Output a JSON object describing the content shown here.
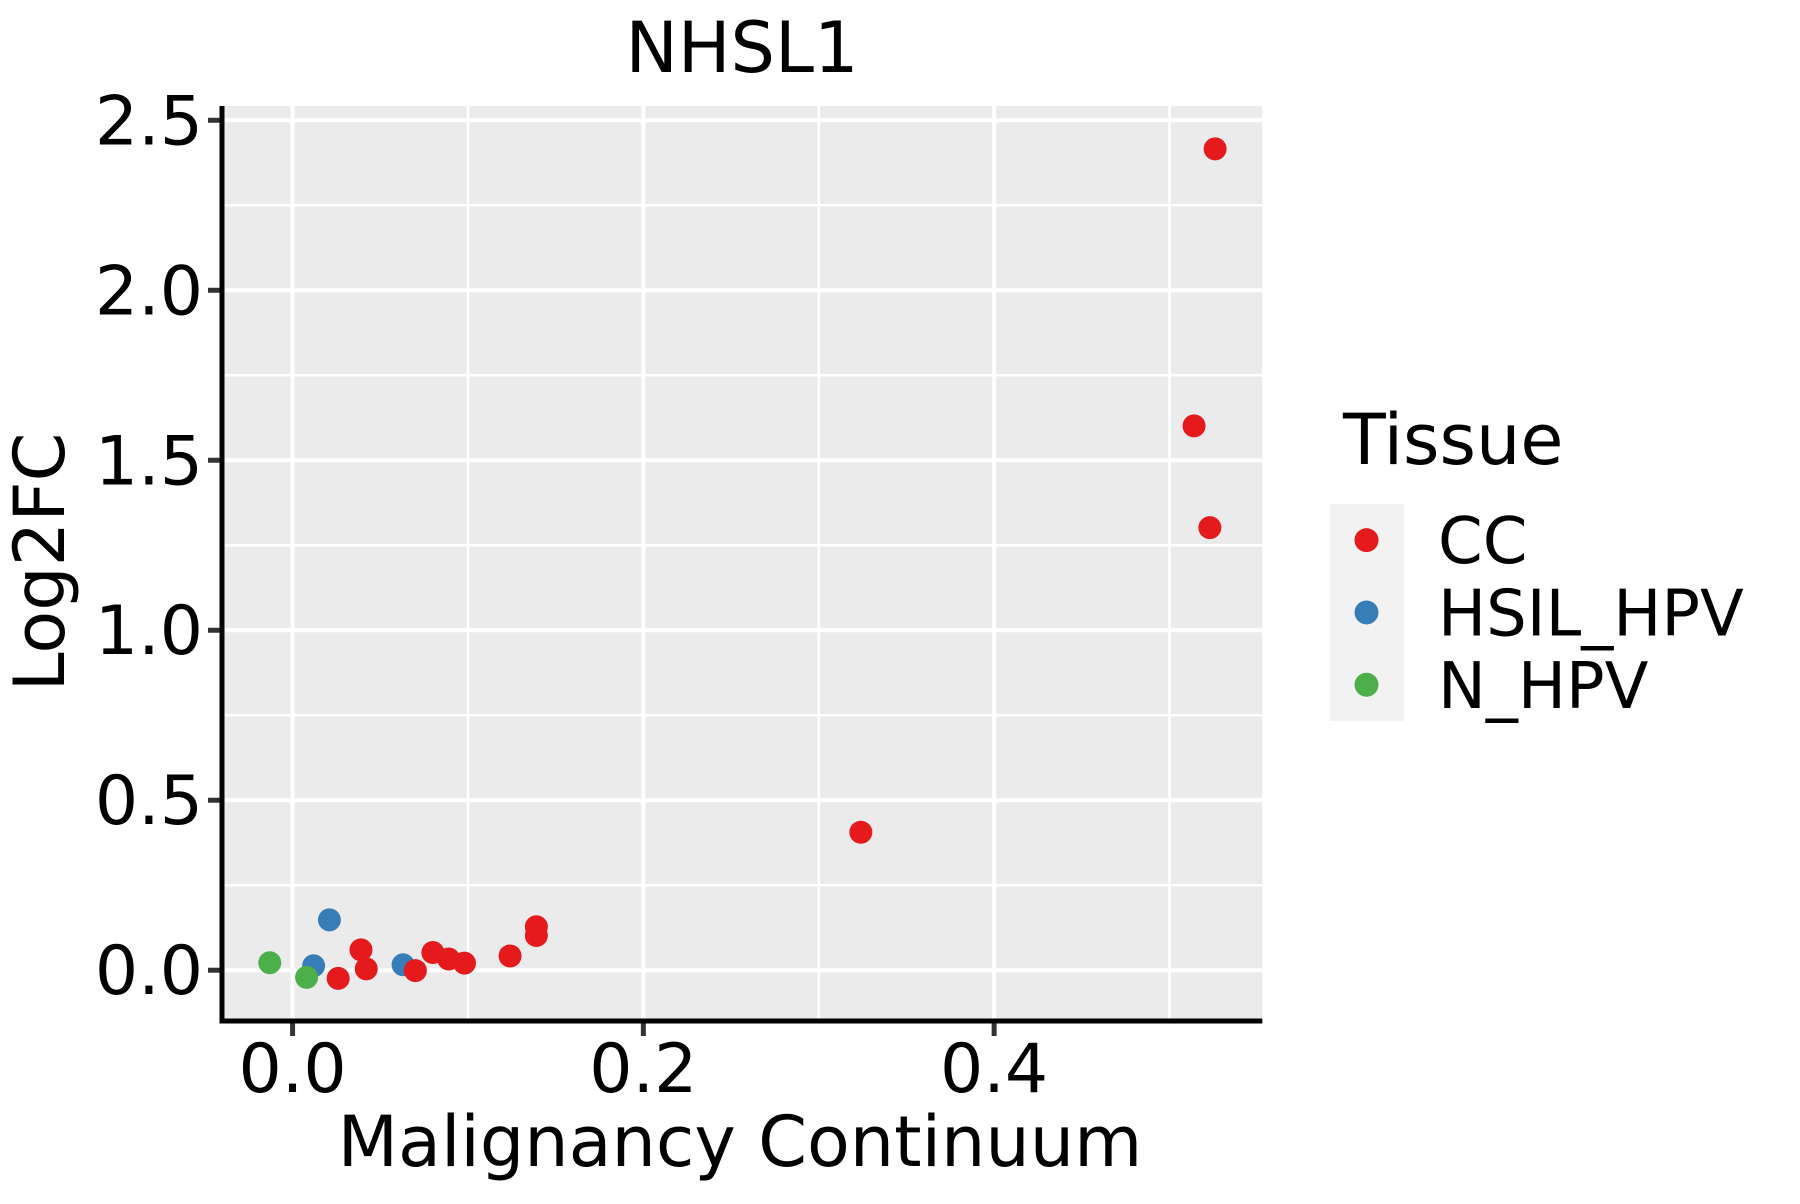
{
  "chart_data": {
    "type": "scatter",
    "title": "NHSL1",
    "xlabel": "Malignancy Continuum",
    "ylabel": "Log2FC",
    "x_domain": [
      -0.0387,
      0.5529
    ],
    "y_domain": [
      -0.142,
      2.542
    ],
    "x_major_ticks": [
      0.0,
      0.2,
      0.4
    ],
    "x_tick_labels": [
      "0.0",
      "0.2",
      "0.4"
    ],
    "x_minor_ticks": [
      0.1,
      0.3,
      0.5
    ],
    "y_major_ticks": [
      0.0,
      0.5,
      1.0,
      1.5,
      2.0,
      2.5
    ],
    "y_tick_labels": [
      "0.0",
      "0.5",
      "1.0",
      "1.5",
      "2.0",
      "2.5"
    ],
    "y_minor_ticks": [
      0.25,
      0.75,
      1.25,
      1.75,
      2.25
    ],
    "grid": "on",
    "series": [
      {
        "name": "HSIL_HPV",
        "color": "#377EB8",
        "points": [
          [
            0.012,
            0.013
          ],
          [
            0.021,
            0.148
          ],
          [
            0.063,
            0.016
          ]
        ]
      },
      {
        "name": "N_HPV",
        "color": "#4DAF4A",
        "points": [
          [
            -0.013,
            0.022
          ],
          [
            0.008,
            -0.021
          ]
        ]
      },
      {
        "name": "CC",
        "color": "#E41A1C",
        "points": [
          [
            0.026,
            -0.024
          ],
          [
            0.039,
            0.06
          ],
          [
            0.042,
            0.004
          ],
          [
            0.07,
            -0.001
          ],
          [
            0.08,
            0.052
          ],
          [
            0.089,
            0.033
          ],
          [
            0.098,
            0.021
          ],
          [
            0.124,
            0.042
          ],
          [
            0.139,
            0.128
          ],
          [
            0.139,
            0.102
          ],
          [
            0.324,
            0.406
          ],
          [
            0.514,
            1.601
          ],
          [
            0.523,
            1.302
          ],
          [
            0.526,
            2.416
          ]
        ]
      }
    ],
    "legend": {
      "title": "Tissue",
      "position": "right",
      "entries": [
        {
          "label": "CC",
          "color": "#E41A1C"
        },
        {
          "label": "HSIL_HPV",
          "color": "#377EB8"
        },
        {
          "label": "N_HPV",
          "color": "#4DAF4A"
        }
      ]
    },
    "style": {
      "panel_bg": "#EBEBEB",
      "grid_color": "#FFFFFF",
      "axis_line_color": "#000000",
      "tick_color": "#333333",
      "legend_key_bg": "#F2F2F2",
      "point_color_red": "#E41A1C",
      "point_color_blue": "#377EB8",
      "point_color_green": "#4DAF4A"
    }
  }
}
